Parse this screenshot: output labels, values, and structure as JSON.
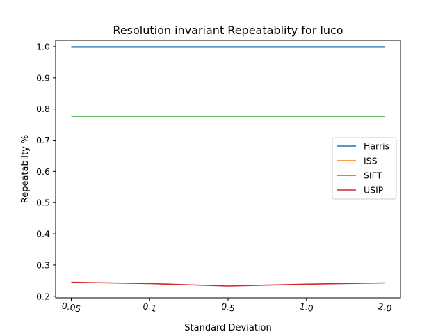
{
  "chart_data": {
    "type": "line",
    "title": "Resolution invariant Repeatablity for luco",
    "xlabel": "Standard Deviation",
    "ylabel": "Repeatabilty %",
    "categories": [
      "0.05",
      "0.1",
      "0.5",
      "1.0",
      "2.0"
    ],
    "ylim": [
      0.195,
      1.02
    ],
    "yticks": [
      "0.2",
      "0.3",
      "0.4",
      "0.5",
      "0.6",
      "0.7",
      "0.8",
      "0.9",
      "1.0"
    ],
    "grid": false,
    "legend_position": "center-right",
    "series": [
      {
        "name": "Harris",
        "color": "#1f77b4",
        "values": [
          1.0,
          1.0,
          1.0,
          1.0,
          1.0
        ]
      },
      {
        "name": "ISS",
        "color": "#ff7f0e",
        "values": [
          0.998,
          0.998,
          0.998,
          0.998,
          0.998
        ]
      },
      {
        "name": "SIFT",
        "color": "#2ca02c",
        "values": [
          0.777,
          0.777,
          0.777,
          0.777,
          0.777
        ]
      },
      {
        "name": "USIP",
        "color": "#d62728",
        "values": [
          0.245,
          0.241,
          0.233,
          0.239,
          0.243
        ]
      }
    ]
  }
}
